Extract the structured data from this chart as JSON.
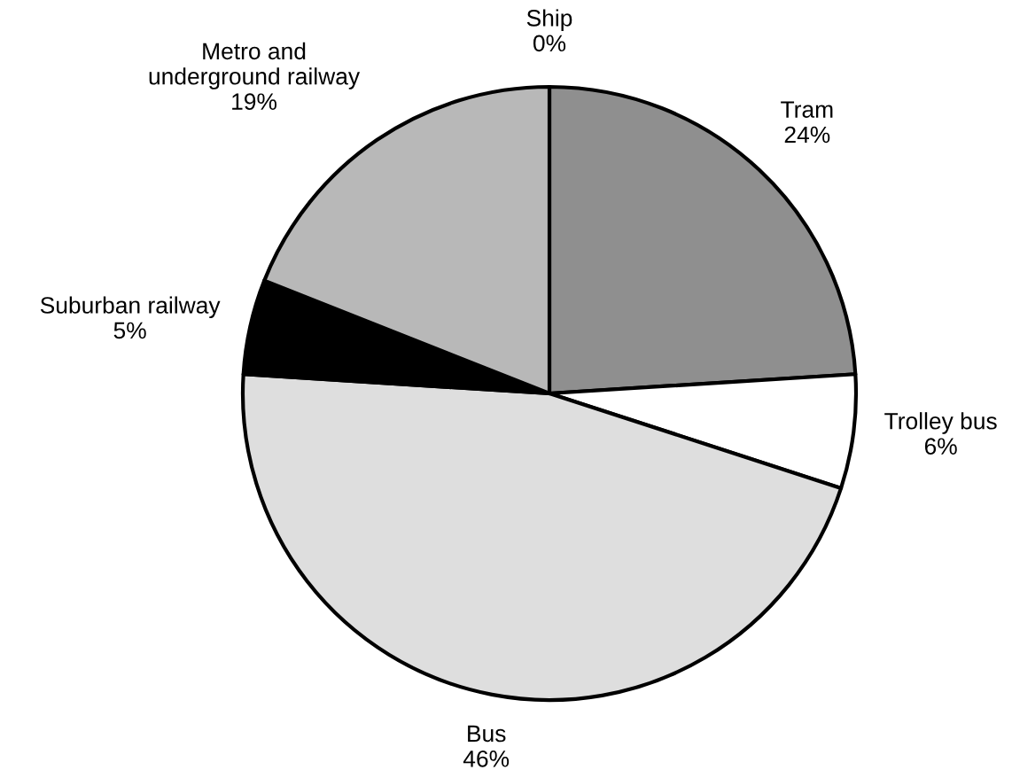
{
  "chart_data": {
    "type": "pie",
    "categories": [
      "Ship",
      "Tram",
      "Trolley bus",
      "Bus",
      "Suburban railway",
      "Metro and underground railway"
    ],
    "values": [
      0,
      24,
      6,
      46,
      5,
      19
    ],
    "value_labels": [
      "0%",
      "24%",
      "6%",
      "46%",
      "5%",
      "19%"
    ],
    "colors": [
      "#ffffff",
      "#8f8f8f",
      "#ffffff",
      "#dedede",
      "#000000",
      "#b8b8b8"
    ],
    "legend": false
  }
}
